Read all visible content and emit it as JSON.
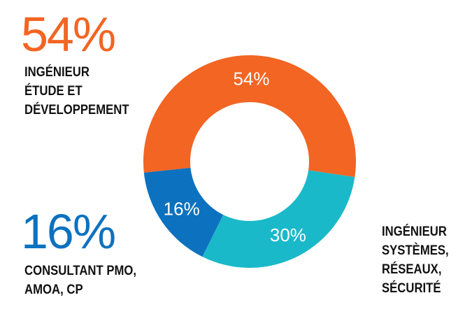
{
  "chart_data": {
    "type": "pie",
    "categories": [
      "INGÉNIEUR\nÉTUDE ET\nDÉVELOPPEMENT",
      "INGÉNIEUR\nSYSTÈMES,\nRÉSEAUX,\nSÉCURITÉ",
      "CONSULTANT PMO,\nAMOA, CP"
    ],
    "values": [
      54,
      30,
      16
    ],
    "value_labels": [
      "54%",
      "30%",
      "16%"
    ],
    "colors": [
      "#f26522",
      "#1ab9c9",
      "#0c72bf"
    ],
    "donut": true
  },
  "callouts": {
    "orange_pct": "54%",
    "blue_pct": "16%"
  }
}
